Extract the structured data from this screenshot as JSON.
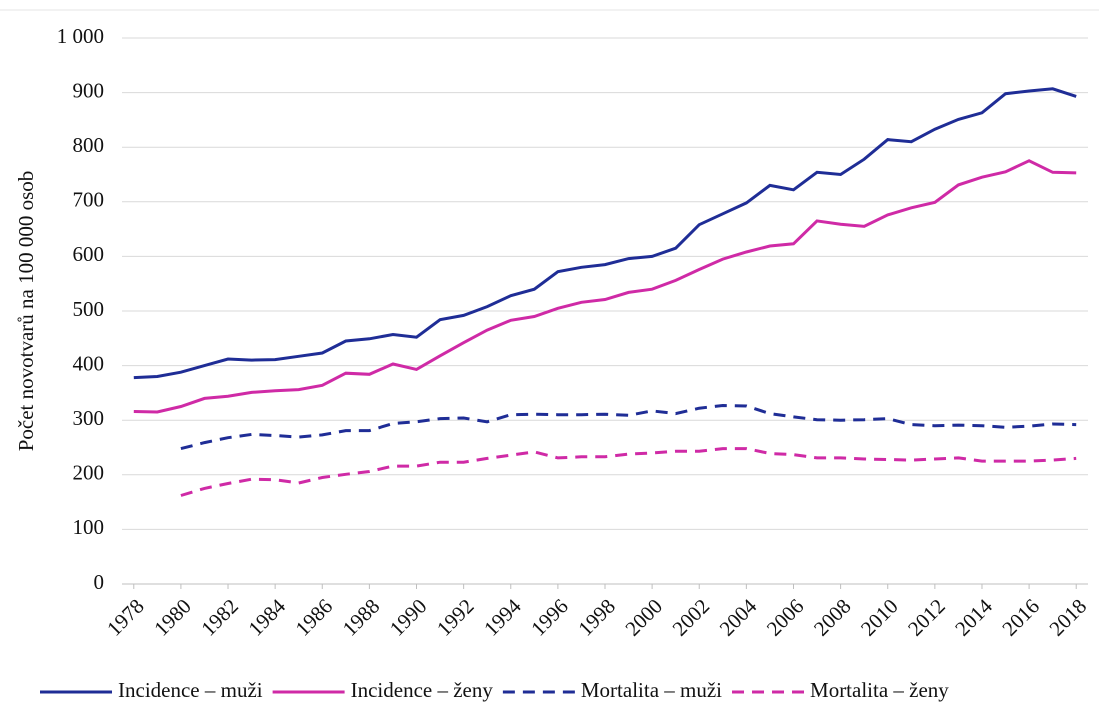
{
  "chart_data": {
    "type": "line",
    "y_label": "Počet novotvarů na 100 000 osob",
    "x": [
      1978,
      1979,
      1980,
      1981,
      1982,
      1983,
      1984,
      1985,
      1986,
      1987,
      1988,
      1989,
      1990,
      1991,
      1992,
      1993,
      1994,
      1995,
      1996,
      1997,
      1998,
      1999,
      2000,
      2001,
      2002,
      2003,
      2004,
      2005,
      2006,
      2007,
      2008,
      2009,
      2010,
      2011,
      2012,
      2013,
      2014,
      2015,
      2016,
      2017,
      2018
    ],
    "xlim": [
      1977.5,
      2018.5
    ],
    "xticks": [
      1978,
      1980,
      1982,
      1984,
      1986,
      1988,
      1990,
      1992,
      1994,
      1996,
      1998,
      2000,
      2002,
      2004,
      2006,
      2008,
      2010,
      2012,
      2014,
      2016,
      2018
    ],
    "ylim": [
      0,
      1000
    ],
    "yticks": [
      0,
      100,
      200,
      300,
      400,
      500,
      600,
      700,
      800,
      900,
      {
        "value": 1000,
        "label": "1 000"
      }
    ],
    "grid": true,
    "legend": "bottom",
    "series": [
      {
        "name": "Incidence – muži",
        "color": "#1f2d96",
        "style": "solid",
        "values": [
          378,
          380,
          388,
          400,
          412,
          410,
          411,
          417,
          423,
          445,
          449,
          457,
          452,
          484,
          492,
          508,
          528,
          540,
          572,
          580,
          585,
          596,
          600,
          615,
          658,
          678,
          698,
          730,
          722,
          754,
          750,
          778,
          814,
          810,
          833,
          851,
          863,
          898,
          903,
          907,
          893
        ]
      },
      {
        "name": "Incidence – ženy",
        "color": "#cf2aa6",
        "style": "solid",
        "values": [
          316,
          315,
          325,
          340,
          344,
          351,
          354,
          356,
          364,
          386,
          384,
          403,
          393,
          418,
          442,
          465,
          483,
          490,
          505,
          516,
          521,
          534,
          540,
          556,
          576,
          595,
          608,
          619,
          623,
          665,
          659,
          655,
          676,
          689,
          699,
          731,
          745,
          755,
          775,
          754,
          753
        ]
      },
      {
        "name": "Mortalita – muži",
        "color": "#1f2d96",
        "style": "dashed",
        "values": [
          null,
          null,
          248,
          259,
          268,
          274,
          272,
          269,
          273,
          281,
          281,
          294,
          297,
          303,
          304,
          297,
          310,
          311,
          310,
          310,
          311,
          309,
          317,
          312,
          322,
          327,
          326,
          312,
          306,
          301,
          300,
          301,
          303,
          292,
          290,
          291,
          290,
          287,
          289,
          293,
          292
        ]
      },
      {
        "name": "Mortalita – ženy",
        "color": "#cf2aa6",
        "style": "dashed",
        "values": [
          null,
          null,
          162,
          175,
          184,
          192,
          191,
          185,
          195,
          201,
          206,
          216,
          216,
          223,
          223,
          230,
          236,
          242,
          231,
          233,
          233,
          238,
          240,
          243,
          243,
          248,
          248,
          239,
          237,
          231,
          231,
          229,
          228,
          227,
          229,
          231,
          225,
          225,
          225,
          227,
          230
        ]
      }
    ]
  }
}
